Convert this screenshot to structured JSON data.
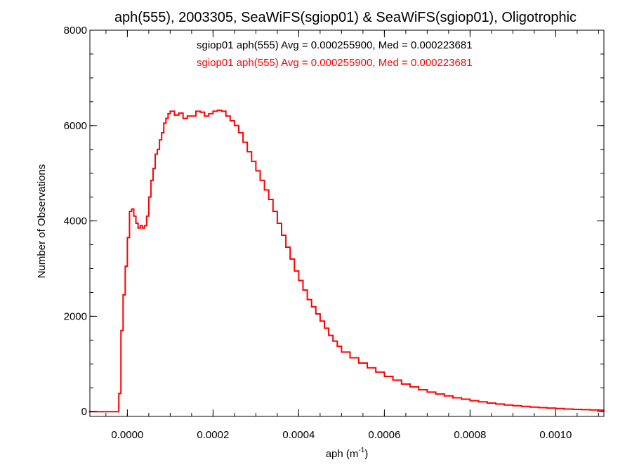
{
  "chart_data": {
    "type": "line",
    "step": true,
    "title": "aph(555), 2003305, SeaWiFS(sgiop01) & SeaWiFS(sgiop01), Oligotrophic",
    "xlabel": "aph (m",
    "xlabel_sup": "-1",
    "xlabel_close": ")",
    "ylabel": "Number of Observations",
    "xlim": [
      -8.75e-05,
      0.0011125
    ],
    "ylim": [
      -100,
      8000
    ],
    "x_ticks": [
      0.0,
      0.0002,
      0.0004,
      0.0006,
      0.0008,
      0.001
    ],
    "x_tick_labels": [
      "0.0000",
      "0.0002",
      "0.0004",
      "0.0006",
      "0.0008",
      "0.0010"
    ],
    "x_minor_step": 5e-05,
    "y_ticks": [
      0,
      2000,
      4000,
      6000,
      8000
    ],
    "y_tick_labels": [
      "0",
      "2000",
      "4000",
      "6000",
      "8000"
    ],
    "y_minor_step": 500,
    "grid": false,
    "legend": [
      {
        "text": "sgiop01 aph(555) Avg = 0.000255900, Med = 0.000223681",
        "color": "#000000"
      },
      {
        "text": "sgiop01 aph(555) Avg = 0.000255900, Med = 0.000223681",
        "color": "#ff0000"
      }
    ],
    "series": [
      {
        "color": "#ff0000",
        "x": [
          -9e-05,
          -4e-05,
          -3e-05,
          -2.5e-05,
          -2e-05,
          -1.5e-05,
          -1e-05,
          -5e-06,
          0.0,
          5e-06,
          1e-05,
          1.5e-05,
          2e-05,
          2.5e-05,
          3e-05,
          3.5e-05,
          4e-05,
          4.5e-05,
          5e-05,
          5.5e-05,
          6e-05,
          6.5e-05,
          7e-05,
          7.5e-05,
          8e-05,
          8.5e-05,
          9e-05,
          9.5e-05,
          0.0001,
          0.00011,
          0.00012,
          0.00013,
          0.00014,
          0.00015,
          0.00016,
          0.00017,
          0.00018,
          0.00019,
          0.0002,
          0.00021,
          0.00022,
          0.00023,
          0.00024,
          0.00025,
          0.00026,
          0.00027,
          0.00028,
          0.00029,
          0.0003,
          0.00031,
          0.00032,
          0.00033,
          0.00034,
          0.00035,
          0.00036,
          0.00037,
          0.00038,
          0.00039,
          0.0004,
          0.00041,
          0.00042,
          0.00043,
          0.00044,
          0.00045,
          0.00046,
          0.00047,
          0.00048,
          0.00049,
          0.0005,
          0.00052,
          0.00054,
          0.00056,
          0.00058,
          0.0006,
          0.00062,
          0.00064,
          0.00066,
          0.00068,
          0.0007,
          0.00072,
          0.00074,
          0.00076,
          0.00078,
          0.0008,
          0.00082,
          0.00084,
          0.00086,
          0.00088,
          0.0009,
          0.00092,
          0.00094,
          0.00096,
          0.00098,
          0.001,
          0.00102,
          0.00104,
          0.00106,
          0.00108,
          0.0011,
          0.001112
        ],
        "y": [
          0,
          0,
          0,
          0,
          380,
          1700,
          2450,
          3050,
          3650,
          4200,
          4250,
          4100,
          3950,
          3850,
          3900,
          3850,
          3900,
          4100,
          4500,
          4850,
          5100,
          5400,
          5500,
          5700,
          5850,
          6050,
          6150,
          6250,
          6300,
          6220,
          6260,
          6150,
          6200,
          6200,
          6300,
          6280,
          6200,
          6250,
          6300,
          6320,
          6300,
          6200,
          6100,
          6000,
          5850,
          5650,
          5450,
          5250,
          5050,
          4850,
          4650,
          4450,
          4200,
          3950,
          3700,
          3450,
          3200,
          2950,
          2750,
          2550,
          2350,
          2200,
          2050,
          1900,
          1750,
          1600,
          1480,
          1370,
          1250,
          1130,
          1020,
          920,
          830,
          740,
          660,
          580,
          520,
          460,
          410,
          370,
          330,
          290,
          260,
          230,
          205,
          180,
          160,
          140,
          125,
          110,
          95,
          85,
          75,
          65,
          55,
          48,
          42,
          36,
          30,
          25
        ]
      }
    ]
  }
}
